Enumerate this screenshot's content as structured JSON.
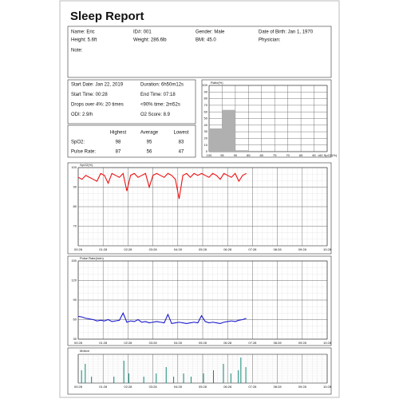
{
  "report": {
    "title": "Sleep Report",
    "info": [
      [
        "Name: Eric",
        "ID#: 001",
        "Gender: Male",
        "Date of Birth: Jan 1, 1970"
      ],
      [
        "Height: 5.6ft",
        "Weight: 286.6lb",
        "BMI: 45.0",
        "Physician:"
      ],
      [
        "Note:"
      ]
    ],
    "summary": [
      [
        "Start Date: Jan 22, 2019",
        "Duration: 6h50m12s"
      ],
      [
        "Start Time: 00:28",
        "End Time: 07:18"
      ],
      [
        "Drops over 4%: 20 times",
        "<90% time: 2m52s"
      ],
      [
        "ODI: 2.9/h",
        "O2 Score: 8.9"
      ]
    ],
    "stats": {
      "columns": [
        "Highest",
        "Average",
        "Lowest"
      ],
      "rows": [
        {
          "label": "SpO2:",
          "values": [
            98,
            95,
            83
          ]
        },
        {
          "label": "Pulse Rate:",
          "values": [
            87,
            56,
            47
          ]
        }
      ]
    }
  },
  "chart_data": [
    {
      "type": "histogram",
      "title": "Ratio(%)",
      "color": "#b0b0b0",
      "bins": [
        100,
        95,
        90,
        85,
        80,
        75,
        70,
        65,
        60
      ],
      "values": [
        35,
        63,
        2,
        0,
        0,
        0,
        0,
        0
      ],
      "xlim": [
        100,
        55
      ],
      "xticks": [
        100,
        95,
        90,
        85,
        80,
        75,
        70,
        65,
        60,
        {
          "value": 55,
          "label": "<60 SpO2(%)"
        }
      ],
      "ylim": [
        0,
        100
      ],
      "yticks": [
        0,
        10,
        20,
        30,
        40,
        50,
        60,
        70,
        80,
        90,
        100
      ],
      "grid": true
    },
    {
      "type": "line",
      "title": "SpO2(%)",
      "color": "#ee1111",
      "x": [
        0.47,
        0.62,
        0.77,
        0.92,
        1.07,
        1.22,
        1.37,
        1.52,
        1.67,
        1.82,
        1.97,
        2.12,
        2.27,
        2.42,
        2.57,
        2.72,
        2.87,
        3.02,
        3.17,
        3.32,
        3.47,
        3.62,
        3.77,
        3.92,
        4.07,
        4.22,
        4.37,
        4.52,
        4.67,
        4.82,
        4.97,
        5.12,
        5.27,
        5.42,
        5.57,
        5.72,
        5.87,
        6.02,
        6.17,
        6.32,
        6.47,
        6.62,
        6.77,
        6.92,
        7.07,
        7.22
      ],
      "values": [
        95,
        94,
        96,
        95,
        94,
        93,
        97,
        96,
        92,
        97,
        96,
        95,
        97,
        88,
        96,
        97,
        95,
        96,
        97,
        90,
        96,
        97,
        96,
        95,
        97,
        96,
        94,
        84,
        96,
        97,
        95,
        97,
        96,
        97,
        96,
        95,
        97,
        96,
        94,
        97,
        96,
        95,
        97,
        93,
        96,
        97
      ],
      "xlim": [
        0.4667,
        10.4667
      ],
      "xticks": [
        {
          "value": 0.4667,
          "label": "00:28"
        },
        {
          "value": 1.4667,
          "label": "01:28"
        },
        {
          "value": 2.4667,
          "label": "02:28"
        },
        {
          "value": 3.4667,
          "label": "03:28"
        },
        {
          "value": 4.4667,
          "label": "04:28"
        },
        {
          "value": 5.4667,
          "label": "05:28"
        },
        {
          "value": 6.4667,
          "label": "06:28"
        },
        {
          "value": 7.4667,
          "label": "07:28"
        },
        {
          "value": 8.4667,
          "label": "08:28"
        },
        {
          "value": 9.4667,
          "label": "09:28"
        },
        {
          "value": 10.4667,
          "label": "10:28"
        }
      ],
      "ylim": [
        60,
        100
      ],
      "yticks": [
        70,
        80,
        90,
        100
      ],
      "grid": true
    },
    {
      "type": "line",
      "title": "Pulse Rate(/min)",
      "color": "#1a1acc",
      "x": [
        0.47,
        0.62,
        0.77,
        0.92,
        1.07,
        1.22,
        1.37,
        1.52,
        1.67,
        1.82,
        1.97,
        2.12,
        2.27,
        2.42,
        2.57,
        2.72,
        2.87,
        3.02,
        3.17,
        3.32,
        3.47,
        3.62,
        3.77,
        3.92,
        4.07,
        4.22,
        4.37,
        4.52,
        4.67,
        4.82,
        4.97,
        5.12,
        5.27,
        5.42,
        5.57,
        5.72,
        5.87,
        6.02,
        6.17,
        6.32,
        6.47,
        6.62,
        6.77,
        6.92,
        7.07,
        7.22
      ],
      "values": [
        65,
        64,
        62,
        61,
        60,
        58,
        59,
        58,
        60,
        57,
        58,
        59,
        70,
        56,
        58,
        57,
        60,
        56,
        57,
        55,
        56,
        57,
        56,
        55,
        68,
        54,
        55,
        56,
        55,
        54,
        55,
        56,
        55,
        66,
        57,
        55,
        56,
        55,
        54,
        56,
        57,
        58,
        57,
        59,
        60,
        62
      ],
      "xlim": [
        0.4667,
        10.4667
      ],
      "xticks": [
        {
          "value": 0.4667,
          "label": "00:28"
        },
        {
          "value": 1.4667,
          "label": "01:28"
        },
        {
          "value": 2.4667,
          "label": "02:28"
        },
        {
          "value": 3.4667,
          "label": "03:28"
        },
        {
          "value": 4.4667,
          "label": "04:28"
        },
        {
          "value": 5.4667,
          "label": "05:28"
        },
        {
          "value": 6.4667,
          "label": "06:28"
        },
        {
          "value": 7.4667,
          "label": "07:28"
        },
        {
          "value": 8.4667,
          "label": "08:28"
        },
        {
          "value": 9.4667,
          "label": "09:28"
        },
        {
          "value": 10.4667,
          "label": "10:28"
        }
      ],
      "ylim": [
        30,
        150
      ],
      "yticks": [
        30,
        60,
        90,
        120,
        150
      ],
      "grid": true
    },
    {
      "type": "spikes",
      "title": "Motion",
      "color": "#118877",
      "x": [
        0.6,
        0.75,
        1.0,
        1.9,
        2.3,
        2.5,
        3.1,
        3.6,
        4.0,
        4.3,
        4.7,
        5.0,
        5.5,
        5.9,
        6.3,
        6.6,
        6.9,
        7.0,
        7.2
      ],
      "values": [
        4,
        6,
        2,
        2,
        7,
        3,
        2,
        3,
        5,
        2,
        3,
        2,
        3,
        4,
        6,
        3,
        4,
        8,
        5
      ],
      "xlim": [
        0.4667,
        10.4667
      ],
      "xticks": [
        {
          "value": 0.4667,
          "label": "00:28"
        },
        {
          "value": 1.4667,
          "label": "01:28"
        },
        {
          "value": 2.4667,
          "label": "02:28"
        },
        {
          "value": 3.4667,
          "label": "03:28"
        },
        {
          "value": 4.4667,
          "label": "04:28"
        },
        {
          "value": 5.4667,
          "label": "05:28"
        },
        {
          "value": 6.4667,
          "label": "06:28"
        },
        {
          "value": 7.4667,
          "label": "07:28"
        },
        {
          "value": 8.4667,
          "label": "08:28"
        },
        {
          "value": 9.4667,
          "label": "09:28"
        },
        {
          "value": 10.4667,
          "label": "10:28"
        }
      ],
      "grid": true
    }
  ]
}
